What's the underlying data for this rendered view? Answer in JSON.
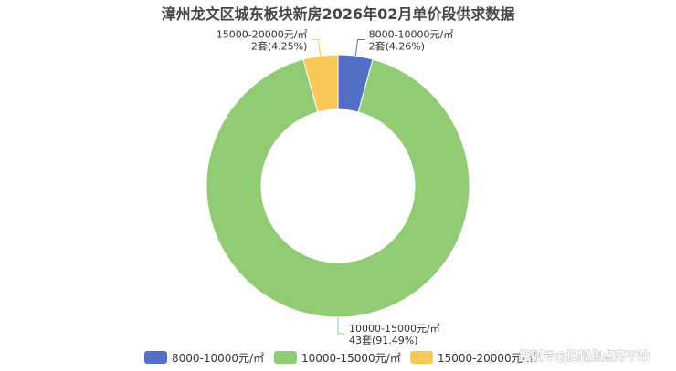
{
  "chart_data": {
    "type": "pie",
    "title": "漳州龙文区城东板块新房2026年02月单价段供求数据",
    "unit": "套",
    "slices": [
      {
        "name": "8000-10000元/㎡",
        "value": 2,
        "percent": "4.26%",
        "label": "2套(4.26%)",
        "color": "#5470c6"
      },
      {
        "name": "10000-15000元/㎡",
        "value": 43,
        "percent": "91.49%",
        "label": "43套(91.49%)",
        "color": "#91cc75"
      },
      {
        "name": "15000-20000元/㎡",
        "value": 2,
        "percent": "4.25%",
        "label": "2套(4.25%)",
        "color": "#fac858"
      }
    ],
    "legend": [
      "8000-10000元/㎡",
      "10000-15000元/㎡",
      "15000-20000元/㎡"
    ],
    "legend_position": "bottom"
  },
  "watermark": "搜狐号@搜狐焦点南平站"
}
